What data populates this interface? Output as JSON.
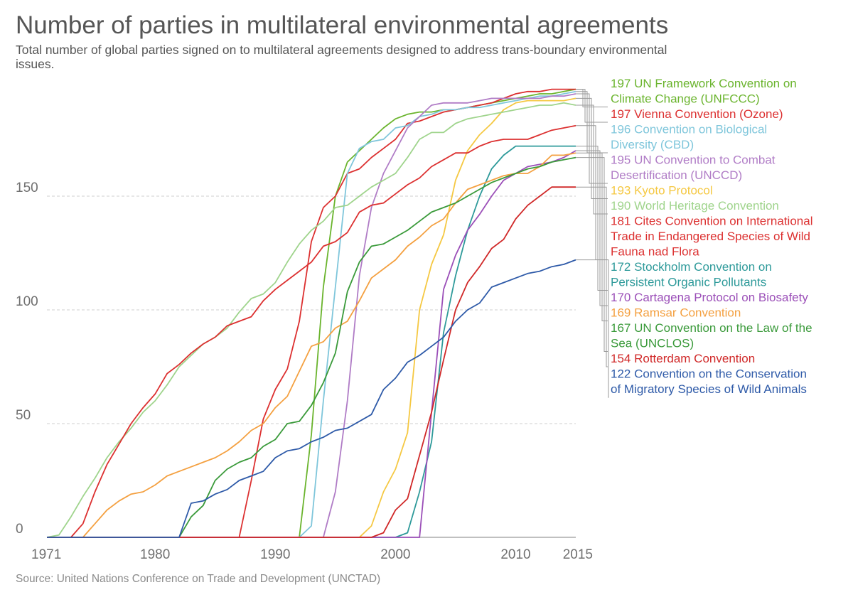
{
  "chart_data": {
    "type": "line",
    "title": "Number of parties in multilateral environmental agreements",
    "subtitle": "Total number of global parties signed on to multilateral agreements designed to address trans-boundary environmental issues.",
    "source": "Source: United Nations Conference on Trade and Development (UNCTAD)",
    "xlabel": "",
    "ylabel": "",
    "xlim": [
      1971,
      2015
    ],
    "ylim": [
      0,
      200
    ],
    "x_ticks": [
      "1971",
      "1980",
      "1990",
      "2000",
      "2010",
      "2015"
    ],
    "x_tick_values": [
      1971,
      1980,
      1990,
      2000,
      2010,
      2015
    ],
    "y_ticks": [
      "0",
      "50",
      "100",
      "150"
    ],
    "y_tick_values": [
      0,
      50,
      100,
      150
    ],
    "grid": true,
    "legend_position": "right",
    "series": [
      {
        "name": "UN Framework Convention on Climate Change (UNFCCC)",
        "final_value": 197,
        "label_lines": [
          "197 UN Framework Convention on",
          "Climate Change (UNFCCC)"
        ],
        "color": "#6ab42d",
        "x": [
          1971,
          1991,
          1992,
          1993,
          1994,
          1995,
          1996,
          1997,
          1998,
          1999,
          2000,
          2001,
          2002,
          2003,
          2004,
          2005,
          2006,
          2007,
          2008,
          2009,
          2010,
          2011,
          2012,
          2013,
          2014,
          2015
        ],
        "y": [
          0,
          0,
          0,
          45,
          110,
          150,
          165,
          170,
          175,
          180,
          184,
          186,
          187,
          187,
          188,
          188,
          189,
          190,
          191,
          192,
          193,
          194,
          195,
          195,
          196,
          197
        ]
      },
      {
        "name": "Vienna Convention (Ozone)",
        "final_value": 197,
        "label_lines": [
          "197 Vienna Convention (Ozone)"
        ],
        "color": "#dc3030",
        "x": [
          1971,
          1986,
          1987,
          1988,
          1989,
          1990,
          1991,
          1992,
          1993,
          1994,
          1995,
          1996,
          1997,
          1998,
          1999,
          2000,
          2001,
          2002,
          2003,
          2004,
          2005,
          2006,
          2007,
          2008,
          2009,
          2010,
          2011,
          2012,
          2013,
          2014,
          2015
        ],
        "y": [
          0,
          0,
          0,
          25,
          52,
          65,
          74,
          95,
          130,
          145,
          150,
          160,
          162,
          167,
          171,
          175,
          182,
          183,
          185,
          187,
          188,
          189,
          190,
          191,
          193,
          195,
          196,
          196,
          197,
          197,
          197
        ]
      },
      {
        "name": "Convention on Biological Diversity (CBD)",
        "final_value": 196,
        "label_lines": [
          "196 Convention on Biological",
          "Diversity (CBD)"
        ],
        "color": "#7fc6db",
        "x": [
          1971,
          1991,
          1992,
          1993,
          1994,
          1995,
          1996,
          1997,
          1998,
          1999,
          2000,
          2001,
          2002,
          2003,
          2004,
          2005,
          2006,
          2007,
          2008,
          2009,
          2010,
          2011,
          2012,
          2013,
          2014,
          2015
        ],
        "y": [
          0,
          0,
          0,
          5,
          60,
          110,
          160,
          171,
          174,
          175,
          180,
          181,
          185,
          186,
          188,
          188,
          189,
          189,
          190,
          191,
          192,
          193,
          194,
          194,
          195,
          196
        ]
      },
      {
        "name": "UN Convention to Combat Desertification (UNCCD)",
        "final_value": 195,
        "label_lines": [
          "195 UN Convention to Combat",
          "Desertification (UNCCD)"
        ],
        "color": "#b07cc6",
        "x": [
          1971,
          1994,
          1995,
          1996,
          1997,
          1998,
          1999,
          2000,
          2001,
          2002,
          2003,
          2004,
          2005,
          2006,
          2007,
          2008,
          2009,
          2010,
          2011,
          2012,
          2013,
          2014,
          2015
        ],
        "y": [
          0,
          0,
          20,
          60,
          115,
          145,
          160,
          170,
          180,
          185,
          190,
          191,
          191,
          191,
          192,
          193,
          193,
          193,
          193,
          193,
          194,
          194,
          195
        ]
      },
      {
        "name": "Kyoto Protocol",
        "final_value": 193,
        "label_lines": [
          "193 Kyoto Protocol"
        ],
        "color": "#f5c842",
        "x": [
          1971,
          1997,
          1998,
          1999,
          2000,
          2001,
          2002,
          2003,
          2004,
          2005,
          2006,
          2007,
          2008,
          2009,
          2010,
          2011,
          2012,
          2013,
          2014,
          2015
        ],
        "y": [
          0,
          0,
          5,
          20,
          30,
          46,
          100,
          120,
          133,
          157,
          170,
          177,
          182,
          188,
          191,
          192,
          192,
          192,
          192,
          193
        ]
      },
      {
        "name": "World Heritage Convention",
        "final_value": 190,
        "label_lines": [
          "190 World Heritage Convention"
        ],
        "color": "#9fd48c",
        "x": [
          1971,
          1972,
          1973,
          1974,
          1975,
          1976,
          1977,
          1978,
          1979,
          1980,
          1981,
          1982,
          1983,
          1984,
          1985,
          1986,
          1987,
          1988,
          1989,
          1990,
          1991,
          1992,
          1993,
          1994,
          1995,
          1996,
          1997,
          1998,
          1999,
          2000,
          2001,
          2002,
          2003,
          2004,
          2005,
          2006,
          2007,
          2008,
          2009,
          2010,
          2011,
          2012,
          2013,
          2014,
          2015
        ],
        "y": [
          0,
          1,
          9,
          18,
          26,
          35,
          42,
          48,
          55,
          60,
          67,
          75,
          80,
          85,
          88,
          92,
          99,
          105,
          107,
          112,
          121,
          129,
          135,
          139,
          145,
          146,
          150,
          154,
          157,
          160,
          167,
          175,
          178,
          178,
          182,
          184,
          185,
          186,
          187,
          188,
          189,
          190,
          190,
          191,
          190
        ]
      },
      {
        "name": "Cites Convention on International Trade in Endangered Species of Wild Fauna nad Flora",
        "final_value": 181,
        "label_lines": [
          "181 Cites Convention on International",
          "Trade in Endangered Species of Wild",
          "Fauna nad Flora"
        ],
        "color": "#dc3030",
        "x": [
          1971,
          1973,
          1974,
          1975,
          1976,
          1977,
          1978,
          1979,
          1980,
          1981,
          1982,
          1983,
          1984,
          1985,
          1986,
          1987,
          1988,
          1989,
          1990,
          1991,
          1992,
          1993,
          1994,
          1995,
          1996,
          1997,
          1998,
          1999,
          2000,
          2001,
          2002,
          2003,
          2004,
          2005,
          2006,
          2007,
          2008,
          2009,
          2010,
          2011,
          2012,
          2013,
          2014,
          2015
        ],
        "y": [
          0,
          0,
          6,
          20,
          32,
          41,
          50,
          57,
          63,
          72,
          76,
          81,
          85,
          88,
          93,
          95,
          97,
          104,
          109,
          113,
          117,
          121,
          128,
          130,
          134,
          143,
          146,
          147,
          151,
          155,
          158,
          163,
          166,
          169,
          169,
          172,
          174,
          175,
          175,
          175,
          177,
          179,
          180,
          181
        ]
      },
      {
        "name": "Stockholm Convention on Persistent Organic Pollutants",
        "final_value": 172,
        "label_lines": [
          "172 Stockholm Convention on",
          "Persistent Organic Pollutants"
        ],
        "color": "#2e9a9a",
        "x": [
          1971,
          2000,
          2001,
          2002,
          2003,
          2004,
          2005,
          2006,
          2007,
          2008,
          2009,
          2010,
          2011,
          2012,
          2013,
          2014,
          2015
        ],
        "y": [
          0,
          0,
          2,
          20,
          42,
          90,
          115,
          135,
          150,
          162,
          168,
          172,
          172,
          172,
          172,
          172,
          172
        ]
      },
      {
        "name": "Cartagena Protocol on Biosafety",
        "final_value": 170,
        "label_lines": [
          "170 Cartagena Protocol on Biosafety"
        ],
        "color": "#9b4fb8",
        "x": [
          1971,
          2001,
          2002,
          2003,
          2004,
          2005,
          2006,
          2007,
          2008,
          2009,
          2010,
          2011,
          2012,
          2013,
          2014,
          2015
        ],
        "y": [
          0,
          0,
          0,
          55,
          109,
          124,
          135,
          142,
          150,
          157,
          160,
          163,
          164,
          165,
          167,
          170
        ]
      },
      {
        "name": "Ramsar Convention",
        "final_value": 169,
        "label_lines": [
          "169 Ramsar Convention"
        ],
        "color": "#f4a040",
        "x": [
          1971,
          1974,
          1975,
          1976,
          1977,
          1978,
          1979,
          1980,
          1981,
          1982,
          1983,
          1984,
          1985,
          1986,
          1987,
          1988,
          1989,
          1990,
          1991,
          1992,
          1993,
          1994,
          1995,
          1996,
          1997,
          1998,
          1999,
          2000,
          2001,
          2002,
          2003,
          2004,
          2005,
          2006,
          2007,
          2008,
          2009,
          2010,
          2011,
          2012,
          2013,
          2014,
          2015
        ],
        "y": [
          0,
          0,
          6,
          12,
          16,
          19,
          20,
          23,
          27,
          29,
          31,
          33,
          35,
          38,
          42,
          47,
          50,
          57,
          62,
          73,
          84,
          86,
          92,
          95,
          104,
          114,
          118,
          122,
          128,
          132,
          137,
          140,
          147,
          153,
          155,
          157,
          159,
          160,
          160,
          163,
          168,
          168,
          169
        ]
      },
      {
        "name": "UN Convention on the Law of the Sea (UNCLOS)",
        "final_value": 167,
        "label_lines": [
          "167 UN Convention on the Law of the",
          "Sea (UNCLOS)"
        ],
        "color": "#3a9a3a",
        "x": [
          1971,
          1982,
          1983,
          1984,
          1985,
          1986,
          1987,
          1988,
          1989,
          1990,
          1991,
          1992,
          1993,
          1994,
          1995,
          1996,
          1997,
          1998,
          1999,
          2000,
          2001,
          2002,
          2003,
          2004,
          2005,
          2006,
          2007,
          2008,
          2009,
          2010,
          2011,
          2012,
          2013,
          2014,
          2015
        ],
        "y": [
          0,
          0,
          9,
          14,
          25,
          30,
          33,
          35,
          40,
          43,
          50,
          51,
          58,
          68,
          81,
          108,
          121,
          128,
          129,
          132,
          135,
          139,
          143,
          145,
          147,
          150,
          153,
          156,
          158,
          160,
          162,
          163,
          165,
          166,
          167
        ]
      },
      {
        "name": "Rotterdam Convention",
        "final_value": 154,
        "label_lines": [
          "154 Rotterdam Convention"
        ],
        "color": "#d02828",
        "x": [
          1971,
          1998,
          1999,
          2000,
          2001,
          2002,
          2003,
          2004,
          2005,
          2006,
          2007,
          2008,
          2009,
          2010,
          2011,
          2012,
          2013,
          2014,
          2015
        ],
        "y": [
          0,
          0,
          2,
          12,
          17,
          36,
          55,
          78,
          100,
          112,
          119,
          127,
          131,
          140,
          146,
          150,
          154,
          154,
          154
        ]
      },
      {
        "name": "Convention on the Conservation of Migratory Species of Wild Animals",
        "final_value": 122,
        "label_lines": [
          "122 Convention on the Conservation",
          "of Migratory Species of Wild Animals"
        ],
        "color": "#2e5aa8",
        "x": [
          1971,
          1982,
          1983,
          1984,
          1985,
          1986,
          1987,
          1988,
          1989,
          1990,
          1991,
          1992,
          1993,
          1994,
          1995,
          1996,
          1997,
          1998,
          1999,
          2000,
          2001,
          2002,
          2003,
          2004,
          2005,
          2006,
          2007,
          2008,
          2009,
          2010,
          2011,
          2012,
          2013,
          2014,
          2015
        ],
        "y": [
          0,
          0,
          15,
          16,
          19,
          21,
          25,
          27,
          29,
          35,
          38,
          39,
          42,
          44,
          47,
          48,
          51,
          54,
          65,
          70,
          77,
          80,
          84,
          88,
          95,
          100,
          103,
          110,
          112,
          114,
          116,
          117,
          119,
          120,
          122
        ]
      }
    ]
  }
}
